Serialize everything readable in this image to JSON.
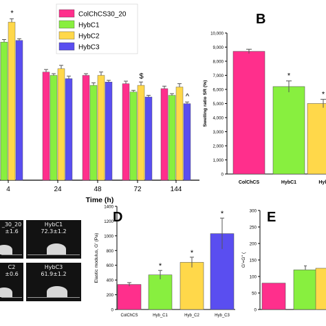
{
  "colors": {
    "ColChCS": "#ff2f8c",
    "HybC1": "#88ef3f",
    "HybC2": "#ffd84a",
    "HybC3": "#5a4ef0"
  },
  "panel_letters": {
    "B": "B",
    "D": "D",
    "E": "E"
  },
  "contact_angle_photos": [
    {
      "label_top": "_30_20",
      "label_bottom": "±1.6"
    },
    {
      "label_top": "HybC1",
      "label_bottom": "72.3±1.2"
    },
    {
      "label_top": "C2",
      "label_bottom": "±0.6"
    },
    {
      "label_top": "HybC3",
      "label_bottom": "61.9±1.2"
    }
  ],
  "chart_data": [
    {
      "id": "A",
      "type": "bar",
      "xlabel": "Time (h)",
      "categories": [
        "4",
        "24",
        "48",
        "72",
        "144"
      ],
      "ylim": [
        0,
        100
      ],
      "legend_position": "top-right",
      "series": [
        {
          "name": "ColChCS30_20",
          "values": [
            83,
            65,
            63,
            58,
            55
          ],
          "errors": [
            3,
            1.5,
            1,
            1.5,
            1.5
          ]
        },
        {
          "name": "HybC1",
          "values": [
            83,
            63,
            57,
            53,
            51
          ],
          "errors": [
            1.5,
            1,
            1.5,
            1,
            1
          ]
        },
        {
          "name": "HybC2",
          "values": [
            95,
            67,
            63,
            57,
            56
          ],
          "errors": [
            2,
            2,
            2,
            2,
            2
          ]
        },
        {
          "name": "HybC3",
          "values": [
            84,
            61,
            59,
            50,
            46
          ],
          "errors": [
            1,
            1.5,
            1,
            1,
            1
          ]
        }
      ],
      "annotations": [
        {
          "category": "4",
          "series": "HybC2",
          "text": "*"
        },
        {
          "category": "72",
          "series": "HybC2",
          "text": "$"
        },
        {
          "category": "144",
          "series": "HybC3",
          "text": "^"
        }
      ]
    },
    {
      "id": "B",
      "type": "bar",
      "ylabel": "Swelling ratio SR (%)",
      "categories": [
        "ColChCS30_20",
        "HybC1",
        "HybC2"
      ],
      "category_labels": [
        "ColChCS",
        "HybC1",
        "Hyb"
      ],
      "values": [
        8700,
        6200,
        5000
      ],
      "errors": [
        150,
        400,
        300
      ],
      "ylim": [
        0,
        10000
      ],
      "yticks": [
        0,
        1000,
        2000,
        3000,
        4000,
        5000,
        6000,
        7000,
        8000,
        9000,
        10000
      ],
      "ytick_labels": [
        "0",
        "1,000",
        "2,000",
        "3,000",
        "4,000",
        "5,000",
        "6,000",
        "7,000",
        "8,000",
        "9,000",
        "10,000"
      ],
      "annotations": [
        "",
        "*",
        "*"
      ]
    },
    {
      "id": "D",
      "type": "bar",
      "ylabel": "Elastic modulus, G' (Pa)",
      "categories": [
        "ColChCS30_20",
        "Hyb_C1",
        "Hyb_C2",
        "Hyb_C3"
      ],
      "category_labels": [
        "ColChCS",
        "Hyb_C1",
        "Hyb_C2",
        "Hyb_C3"
      ],
      "values": [
        340,
        470,
        640,
        1030
      ],
      "errors": [
        25,
        60,
        70,
        210
      ],
      "ylim": [
        0,
        1400
      ],
      "yticks": [
        0,
        200,
        400,
        600,
        800,
        1000,
        1200,
        1400
      ],
      "ytick_labels": [
        "0",
        "200",
        "400",
        "600",
        "800",
        "1000",
        "1200",
        "1400"
      ],
      "annotations": [
        "",
        "*",
        "*",
        "*"
      ]
    },
    {
      "id": "E",
      "type": "bar",
      "ylabel": "G'=G'' (",
      "categories": [
        "ColChCS30_20",
        "Hyb_C1",
        "Hyb_C2"
      ],
      "values": [
        80,
        120,
        125
      ],
      "ylim": [
        0,
        300
      ],
      "yticks": [
        0,
        50,
        100,
        150,
        200,
        250,
        300
      ],
      "ytick_labels": [
        "0",
        "50",
        "100",
        "150",
        "200",
        "250",
        "300"
      ]
    }
  ]
}
